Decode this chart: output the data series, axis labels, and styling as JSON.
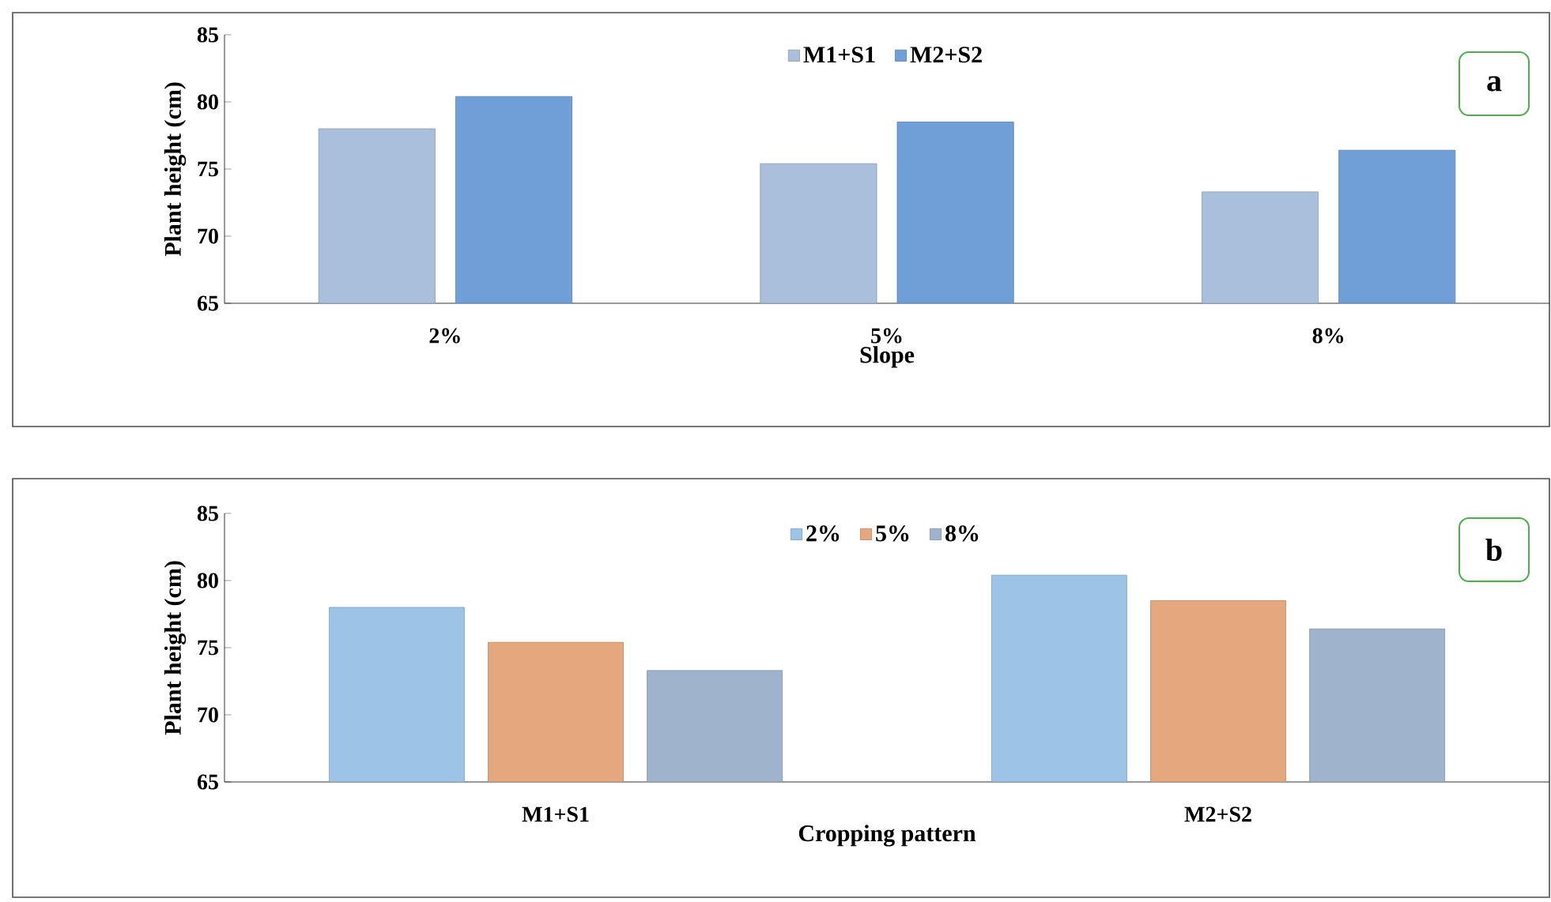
{
  "chart_data": [
    {
      "type": "bar",
      "categories": [
        "2%",
        "5%",
        "8%"
      ],
      "xlabel": "Slope",
      "ylabel": "Plant height (cm)",
      "ylim": [
        65,
        85
      ],
      "yticks": [
        65,
        70,
        75,
        80,
        85
      ],
      "legend": "top",
      "annotations": [
        "a"
      ],
      "series": [
        {
          "name": "M1+S1",
          "color": "#a9bfdc",
          "values": [
            78.0,
            75.4,
            73.3
          ]
        },
        {
          "name": "M2+S2",
          "color": "#6f9fd6",
          "values": [
            80.4,
            78.5,
            76.4
          ]
        }
      ]
    },
    {
      "type": "bar",
      "categories": [
        "M1+S1",
        "M2+S2"
      ],
      "xlabel": "Cropping pattern",
      "ylabel": "Plant height (cm)",
      "ylim": [
        65,
        85
      ],
      "yticks": [
        65,
        70,
        75,
        80,
        85
      ],
      "legend": "top",
      "annotations": [
        "b"
      ],
      "series": [
        {
          "name": "2%",
          "color": "#9dc3e6",
          "values": [
            78.0,
            80.4
          ]
        },
        {
          "name": "5%",
          "color": "#e4a77e",
          "values": [
            75.4,
            78.5
          ]
        },
        {
          "name": "8%",
          "color": "#9fb3cc",
          "values": [
            73.3,
            76.4
          ]
        }
      ]
    }
  ]
}
